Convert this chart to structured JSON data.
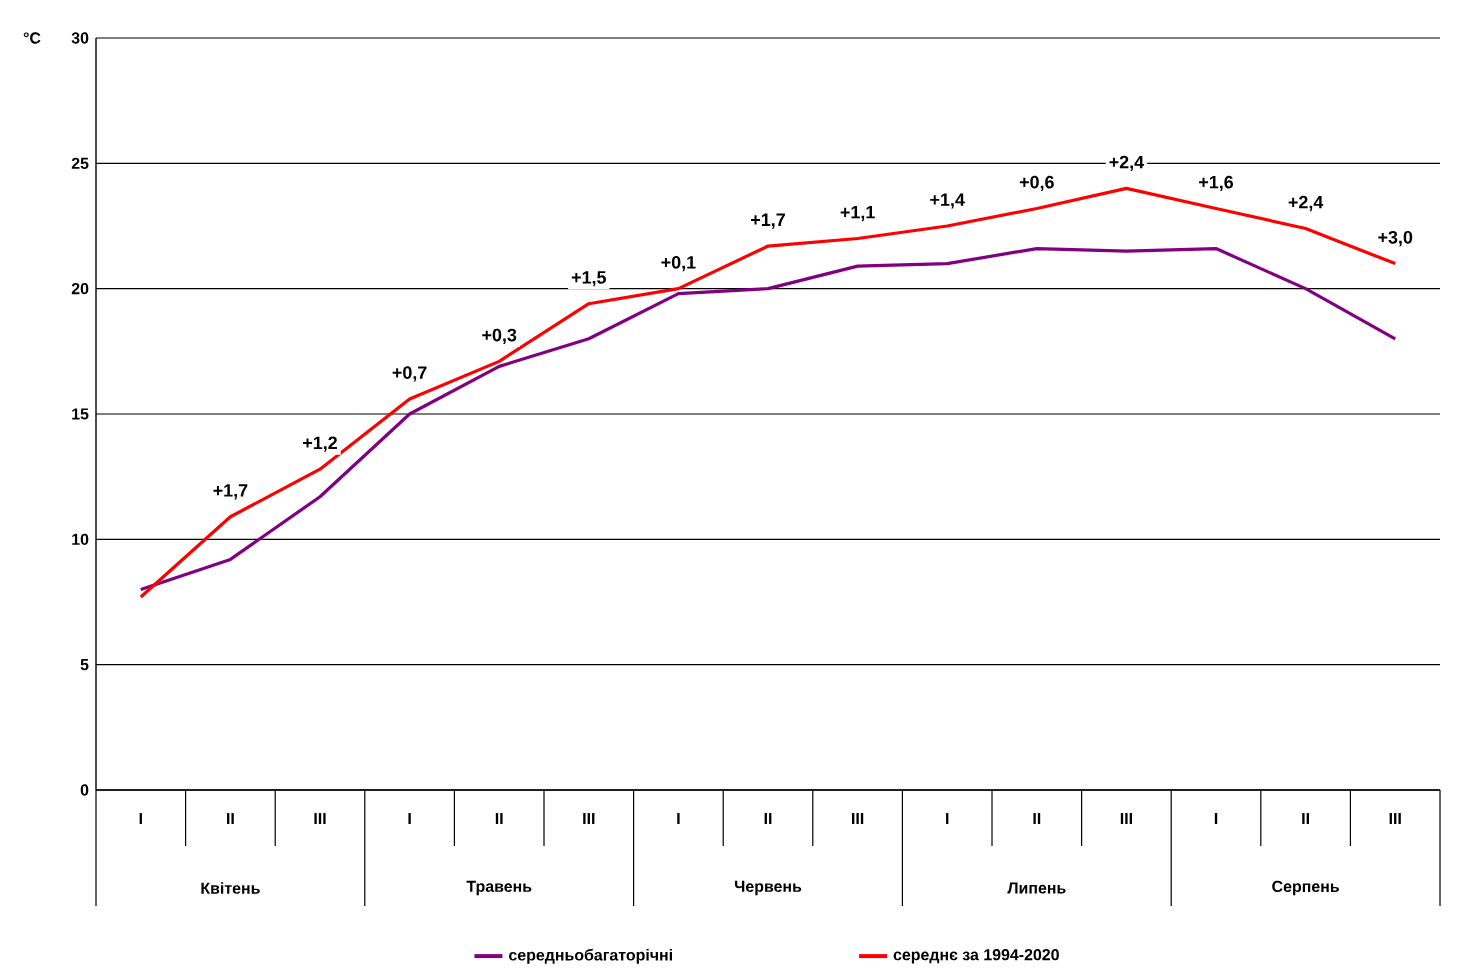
{
  "chart_data": {
    "type": "line",
    "ylabel": "°C",
    "categories": [
      "I",
      "II",
      "III",
      "I",
      "II",
      "III",
      "I",
      "II",
      "III",
      "I",
      "II",
      "III",
      "I",
      "II",
      "III"
    ],
    "series": [
      {
        "name": "середньобагаторічні",
        "color": "#800080",
        "values": [
          8.0,
          9.2,
          11.7,
          15.0,
          16.9,
          18.0,
          19.8,
          20.0,
          20.9,
          21.0,
          21.6,
          21.5,
          21.6,
          20.0,
          18.0
        ]
      },
      {
        "name": "середнє за 1994-2020",
        "color": "#ff0000",
        "values": [
          7.7,
          10.9,
          12.8,
          15.6,
          17.1,
          19.4,
          20.0,
          21.7,
          22.0,
          22.5,
          23.2,
          24.0,
          23.2,
          22.4,
          21.0
        ]
      }
    ],
    "annotations": [
      "Квітень",
      "Травень",
      "Червень",
      "Липень",
      "Серпень",
      "+1,7",
      "+1,2",
      "+0,7",
      "+0,3",
      "+1,5",
      "+0,1",
      "+1,7",
      "+1,1",
      "+1,4",
      "+0,6",
      "+2,4",
      "+1,6",
      "+2,4",
      "+3,0"
    ],
    "ylim": [
      0,
      30
    ],
    "yticks": [
      0,
      5,
      10,
      15,
      20,
      25,
      30
    ],
    "grid": "y",
    "legend": "bottom",
    "marker": "none",
    "line_style": "solid"
  }
}
